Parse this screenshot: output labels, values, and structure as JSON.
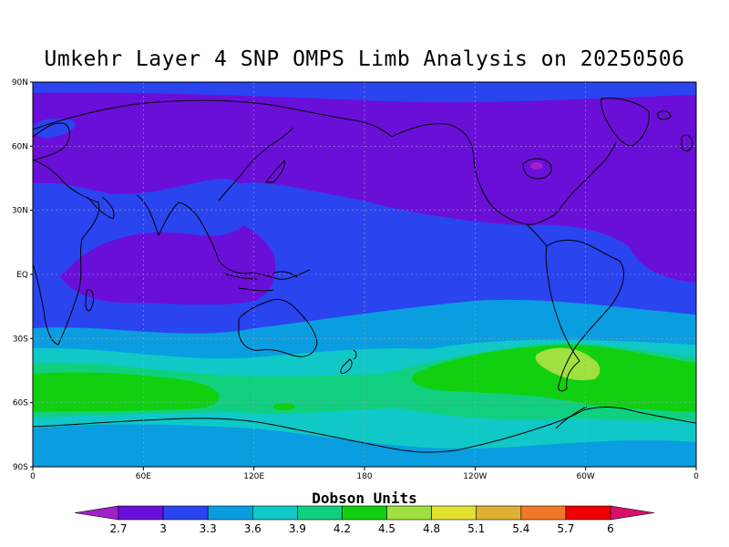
{
  "title": "Umkehr Layer 4 SNP OMPS Limb Analysis on 20250506",
  "chart_data": {
    "type": "heatmap",
    "title": "Umkehr Layer 4 SNP OMPS Limb Analysis on 20250506",
    "xlabel": "",
    "ylabel": "",
    "projection": "cylindrical equidistant, longitude 0 to 360 (Pacific-centred)",
    "xlim": [
      0,
      360
    ],
    "ylim": [
      -90,
      90
    ],
    "x_ticks": [
      "0",
      "60E",
      "120E",
      "180",
      "120W",
      "60W",
      "0"
    ],
    "y_ticks": [
      "90N",
      "60N",
      "30N",
      "EQ",
      "30S",
      "60S",
      "90S"
    ],
    "grid": true,
    "coastlines": true,
    "colorbar": {
      "label": "Dobson Units",
      "levels": [
        2.7,
        3,
        3.3,
        3.6,
        3.9,
        4.2,
        4.5,
        4.8,
        5.1,
        5.4,
        5.7,
        6
      ],
      "level_labels": [
        "2.7",
        "3",
        "3.3",
        "3.6",
        "3.9",
        "4.2",
        "4.5",
        "4.8",
        "5.1",
        "5.4",
        "5.7",
        "6"
      ],
      "colors": [
        "#a020c8",
        "#6a0fd8",
        "#2a44f0",
        "#0a9ee0",
        "#10c8c8",
        "#10d080",
        "#10d010",
        "#a0e040",
        "#e0e030",
        "#e0b030",
        "#f07828",
        "#f00000",
        "#d8106c"
      ],
      "orientation": "horizontal",
      "extend": "both"
    },
    "zonal_bands": [
      {
        "lat_range": [
          90,
          84
        ],
        "value": 3.15,
        "description": "blue polar cap"
      },
      {
        "lat_range": [
          84,
          55
        ],
        "value": 2.9,
        "description": "purple northern high latitudes"
      },
      {
        "lat_range": [
          55,
          20
        ],
        "value": 2.9,
        "description": "purple over Pacific/Atlantic, blue over Africa/Asia"
      },
      {
        "lat_range": [
          20,
          -20
        ],
        "value": 3.05,
        "description": "blue tropics with purple over Indian Ocean and Atlantic"
      },
      {
        "lat_range": [
          -20,
          -28
        ],
        "value": 3.25,
        "description": "blue"
      },
      {
        "lat_range": [
          -28,
          -38
        ],
        "value": 3.5,
        "description": "light blue"
      },
      {
        "lat_range": [
          -38,
          -48
        ],
        "value": 3.8,
        "description": "cyan"
      },
      {
        "lat_range": [
          -48,
          -62
        ],
        "value": 4.2,
        "description": "green maxima over S Atlantic/Indian Ocean and S Pacific"
      },
      {
        "lat_range": [
          -62,
          -72
        ],
        "value": 3.8,
        "description": "cyan"
      },
      {
        "lat_range": [
          -72,
          -80
        ],
        "value": 3.6,
        "description": "light blue"
      },
      {
        "lat_range": [
          -80,
          -90
        ],
        "value": 3.4,
        "description": "blue south polar"
      }
    ],
    "notable_features": [
      {
        "location": "southern South America (~40S-50S, 60W-80W)",
        "value": 4.6
      },
      {
        "location": "Hudson Bay region (~55N, 85W)",
        "value": 2.7
      },
      {
        "location": "Southern Ocean south of Africa (40S-60S, 0-70E)",
        "value": 4.3
      },
      {
        "location": "South Atlantic off Argentina (40S-60S, 30W-80W)",
        "value": 4.3
      }
    ]
  }
}
